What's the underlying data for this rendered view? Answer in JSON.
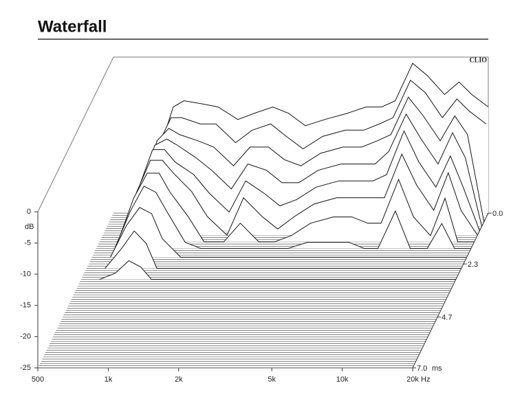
{
  "header": {
    "title": "Waterfall"
  },
  "chart_data": {
    "type": "waterfall",
    "brand": "CLIO",
    "ylabel": "dB",
    "xlabel": "Hz",
    "zlabel": "ms",
    "xlim": [
      500,
      20000
    ],
    "log_x": true,
    "xticks": [
      500,
      {
        "value": 1000,
        "label": "1k"
      },
      {
        "value": 2000,
        "label": "2k"
      },
      {
        "value": 5000,
        "label": "5k"
      },
      {
        "value": 10000,
        "label": "10k"
      },
      {
        "value": 20000,
        "label": "20k"
      }
    ],
    "ylim": [
      -25,
      0
    ],
    "yticks": [
      0,
      -5,
      -10,
      -15,
      -20,
      -25
    ],
    "zlim": [
      0,
      7
    ],
    "zticks": [
      {
        "value": 0,
        "label": "0.0"
      },
      2.3,
      4.7,
      {
        "value": 7,
        "label": "7.0"
      }
    ],
    "color": "#111111",
    "x": [
      600,
      700,
      800,
      900,
      1000,
      1200,
      1400,
      1700,
      2000,
      2400,
      2800,
      3300,
      4000,
      5000,
      6000,
      7000,
      8000,
      9500,
      11000,
      13000,
      15000,
      17000,
      20000
    ],
    "slices": [
      {
        "time": 0,
        "values": [
          -25,
          -22,
          -14,
          -8,
          -7,
          -7.5,
          -8,
          -10,
          -9,
          -8,
          -9,
          -11,
          -10,
          -9,
          -8,
          -8,
          -7,
          -1,
          -3,
          -6,
          -4,
          -6,
          -8
        ]
      },
      {
        "time": 0.2,
        "values": [
          -25,
          -21,
          -13,
          -9,
          -9,
          -10,
          -10,
          -13,
          -11,
          -10,
          -12,
          -14,
          -12,
          -11,
          -11,
          -10,
          -9,
          -3,
          -5,
          -9,
          -6,
          -8,
          -10
        ]
      },
      {
        "time": 0.4,
        "values": [
          -25,
          -20,
          -12,
          -10,
          -11,
          -12,
          -13,
          -16,
          -13,
          -13,
          -15,
          -16,
          -14,
          -13,
          -13,
          -12,
          -11,
          -5,
          -8,
          -12,
          -8,
          -11,
          -25
        ]
      },
      {
        "time": 0.6,
        "values": [
          -25,
          -19,
          -12,
          -11,
          -12,
          -14,
          -16,
          -19,
          -15,
          -16,
          -18,
          -18,
          -16,
          -15,
          -15,
          -15,
          -13,
          -7,
          -11,
          -15,
          -10,
          -14,
          -25
        ]
      },
      {
        "time": 0.8,
        "values": [
          -25,
          -18,
          -12,
          -12,
          -14,
          -16,
          -19,
          -22,
          -17,
          -19,
          -21,
          -20,
          -18,
          -17,
          -17,
          -17,
          -16,
          -9,
          -14,
          -18,
          -13,
          -18,
          -25
        ]
      },
      {
        "time": 1.0,
        "values": [
          -25,
          -18,
          -13,
          -13,
          -15,
          -18,
          -22,
          -25,
          -19,
          -22,
          -24,
          -22,
          -20,
          -19,
          -19,
          -19,
          -19,
          -12,
          -17,
          -21,
          -15,
          -21,
          -25
        ]
      },
      {
        "time": 1.3,
        "values": [
          -25,
          -18,
          -14,
          -14,
          -17,
          -21,
          -25,
          -25,
          -22,
          -25,
          -25,
          -24,
          -22,
          -21,
          -21,
          -22,
          -22,
          -15,
          -21,
          -24,
          -18,
          -25,
          -25
        ]
      },
      {
        "time": 1.6,
        "values": [
          -25,
          -19,
          -15,
          -16,
          -19,
          -24,
          -25,
          -25,
          -25,
          -25,
          -25,
          -25,
          -24,
          -24,
          -24,
          -25,
          -25,
          -19,
          -25,
          -25,
          -21,
          -25,
          -25
        ]
      },
      {
        "time": 2.0,
        "values": [
          -25,
          -20,
          -17,
          -18,
          -22,
          -25,
          -25,
          -25,
          -25,
          -25,
          -25,
          -25,
          -25,
          -25,
          -25,
          -25,
          -25,
          -25,
          -25,
          -25,
          -25,
          -25,
          -25
        ]
      },
      {
        "time": 2.5,
        "values": [
          -25,
          -22,
          -19,
          -21,
          -25,
          -25,
          -25,
          -25,
          -25,
          -25,
          -25,
          -25,
          -25,
          -25,
          -25,
          -25,
          -25,
          -25,
          -25,
          -25,
          -25,
          -25,
          -25
        ]
      },
      {
        "time": 3.0,
        "values": [
          -25,
          -24,
          -22,
          -23,
          -25,
          -25,
          -25,
          -25,
          -25,
          -25,
          -25,
          -25,
          -25,
          -25,
          -25,
          -25,
          -25,
          -25,
          -25,
          -25,
          -25,
          -25,
          -25
        ]
      }
    ]
  }
}
